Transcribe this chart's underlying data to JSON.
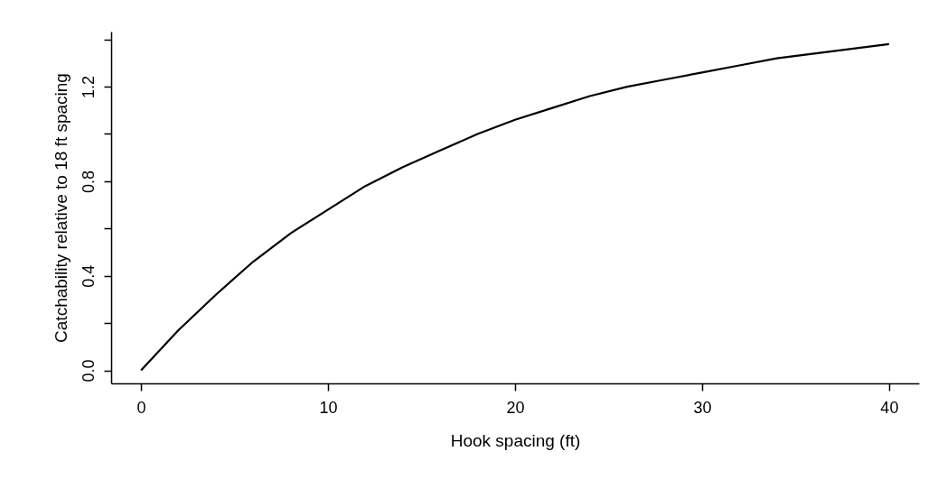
{
  "chart_data": {
    "type": "line",
    "xlabel": "Hook spacing (ft)",
    "ylabel": "Catchability relative to 18 ft spacing",
    "x": [
      0,
      2,
      4,
      6,
      8,
      10,
      12,
      14,
      16,
      18,
      20,
      22,
      24,
      26,
      28,
      30,
      32,
      34,
      36,
      38,
      40
    ],
    "series": [
      {
        "color": "#000000",
        "values": [
          0,
          0.17,
          0.32,
          0.46,
          0.58,
          0.68,
          0.78,
          0.86,
          0.93,
          1.0,
          1.06,
          1.11,
          1.16,
          1.2,
          1.23,
          1.26,
          1.29,
          1.32,
          1.34,
          1.36,
          1.38
        ]
      }
    ],
    "xlim": [
      -1.6,
      41.6
    ],
    "xticks": [
      0,
      10,
      20,
      30,
      40
    ],
    "ylim": [
      -0.055,
      1.433
    ],
    "yticks": [
      {
        "value": 0,
        "label": "0.0"
      },
      {
        "value": 0.2,
        "label": null
      },
      0.4,
      {
        "value": 0.6,
        "label": null
      },
      0.8,
      {
        "value": 1.0,
        "label": null
      },
      1.2,
      {
        "value": 1.4,
        "label": null
      }
    ],
    "grid": false,
    "legend": false,
    "marker": "none",
    "line_style": "solid"
  }
}
